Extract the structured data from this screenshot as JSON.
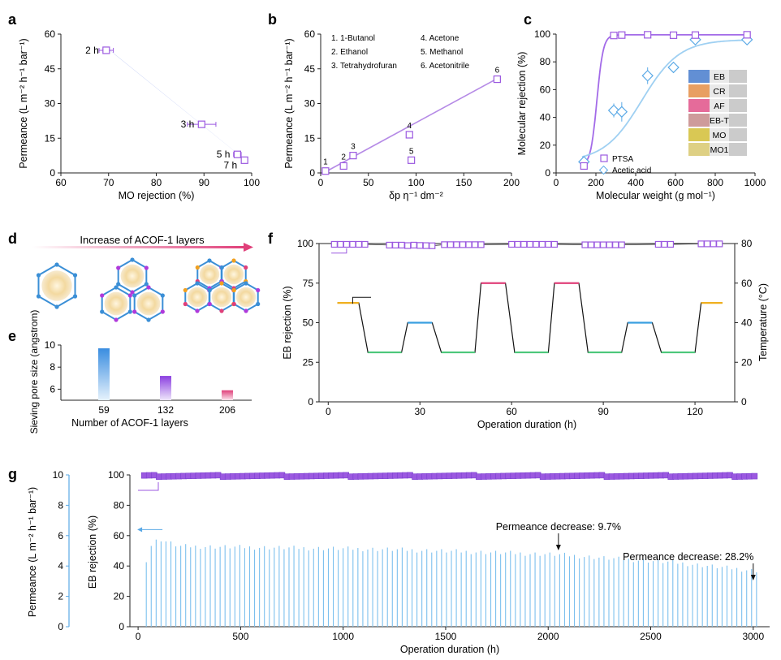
{
  "panels": {
    "a": {
      "letter": "a"
    },
    "b": {
      "letter": "b"
    },
    "c": {
      "letter": "c"
    },
    "d": {
      "letter": "d",
      "banner": "Increase of ACOF-1 layers"
    },
    "e": {
      "letter": "e"
    },
    "f": {
      "letter": "f"
    },
    "g": {
      "letter": "g"
    }
  },
  "colors": {
    "purple": "#9b59e0",
    "purple_light": "#c9b8f0",
    "blue": "#5aa9e6",
    "pink": "#e0407a",
    "grey": "#444444"
  },
  "chart_data": [
    {
      "id": "a",
      "type": "scatter",
      "xlabel": "MO rejection (%)",
      "ylabel": "Permeance (L m⁻² h⁻¹ bar⁻¹)",
      "xlim": [
        60,
        100
      ],
      "ylim": [
        0,
        60
      ],
      "xticks": [
        60,
        70,
        80,
        90,
        100
      ],
      "yticks": [
        0,
        15,
        30,
        45,
        60
      ],
      "points": [
        {
          "x": 69.5,
          "y": 53,
          "label": "2 h",
          "xerr": 1.5
        },
        {
          "x": 89.5,
          "y": 21,
          "label": "3 h",
          "xerr": 3
        },
        {
          "x": 97,
          "y": 8,
          "label": "5 h",
          "xerr": 0.8
        },
        {
          "x": 98.5,
          "y": 5.5,
          "label": "7 h",
          "xerr": 0.5
        }
      ]
    },
    {
      "id": "b",
      "type": "scatter",
      "xlabel": "δp η⁻¹ dm⁻²",
      "ylabel": "Permeance (L m⁻² h⁻¹ bar⁻¹)",
      "xlim": [
        0,
        200
      ],
      "ylim": [
        0,
        60
      ],
      "xticks": [
        0,
        50,
        100,
        150,
        200
      ],
      "yticks": [
        0,
        15,
        30,
        45,
        60
      ],
      "legend": [
        "1. 1-Butanol",
        "2. Ethanol",
        "3. Tetrahydrofuran",
        "4. Acetone",
        "5. Methanol",
        "6. Acetonitrile"
      ],
      "points": [
        {
          "x": 5,
          "y": 0.8,
          "label": "1"
        },
        {
          "x": 24,
          "y": 3,
          "label": "2"
        },
        {
          "x": 34,
          "y": 7.5,
          "label": "3"
        },
        {
          "x": 93,
          "y": 16.5,
          "label": "4"
        },
        {
          "x": 95,
          "y": 5.5,
          "label": "5"
        },
        {
          "x": 185,
          "y": 40.5,
          "label": "6"
        }
      ],
      "fit": [
        [
          3,
          0
        ],
        [
          186,
          41
        ]
      ]
    },
    {
      "id": "c",
      "type": "line",
      "xlabel": "Molecular weight (g mol⁻¹)",
      "ylabel": "Molecular rejection (%)",
      "xlim": [
        0,
        1000
      ],
      "ylim": [
        0,
        100
      ],
      "xticks": [
        0,
        200,
        400,
        600,
        800,
        1000
      ],
      "yticks": [
        0,
        20,
        40,
        60,
        80,
        100
      ],
      "series": [
        {
          "name": "PTSA",
          "marker": "square",
          "points": [
            [
              140,
              5
            ],
            [
              290,
              99
            ],
            [
              330,
              99.3
            ],
            [
              460,
              99.5
            ],
            [
              590,
              99.2
            ],
            [
              700,
              99.3
            ],
            [
              960,
              99.5
            ]
          ]
        },
        {
          "name": "Acetic acid",
          "marker": "diamond",
          "points": [
            [
              140,
              8
            ],
            [
              290,
              45
            ],
            [
              330,
              44
            ],
            [
              460,
              70
            ],
            [
              590,
              76
            ],
            [
              700,
              96
            ],
            [
              960,
              96
            ]
          ]
        }
      ],
      "inset_labels": [
        "EB",
        "CR",
        "AF",
        "EB-T",
        "MO",
        "MO1"
      ],
      "inset_colors": [
        "#4a7fd0",
        "#e8924a",
        "#e4558c",
        "#c98d8d",
        "#d6c23a",
        "#dccb72"
      ]
    },
    {
      "id": "e",
      "type": "bar",
      "xlabel": "Number of ACOF-1 layers",
      "ylabel": "Sieving pore size (angstrom)",
      "categories": [
        "59",
        "132",
        "206"
      ],
      "values": [
        9.7,
        7.2,
        5.9
      ],
      "ylim": [
        5,
        10
      ],
      "yticks": [
        6,
        8,
        10
      ]
    },
    {
      "id": "f",
      "type": "line",
      "xlabel": "Operation duration (h)",
      "ylabel": "EB rejection (%)",
      "y2label": "Temperature (°C)",
      "xlim": [
        -3,
        133
      ],
      "ylim": [
        0,
        100
      ],
      "y2lim": [
        0,
        80
      ],
      "xticks": [
        0,
        30,
        60,
        90,
        120
      ],
      "yticks": [
        0,
        25,
        50,
        75,
        100
      ],
      "y2ticks": [
        0,
        20,
        40,
        60,
        80
      ],
      "rejection": [
        [
          2,
          99.5
        ],
        [
          4,
          99.5
        ],
        [
          6,
          99.5
        ],
        [
          8,
          99.5
        ],
        [
          10,
          99.5
        ],
        [
          12,
          99.5
        ],
        [
          20,
          99
        ],
        [
          22,
          99
        ],
        [
          24,
          99
        ],
        [
          26,
          98.7
        ],
        [
          28,
          99
        ],
        [
          30,
          98.8
        ],
        [
          32,
          98.7
        ],
        [
          34,
          98.6
        ],
        [
          38,
          99.3
        ],
        [
          40,
          99.3
        ],
        [
          42,
          99.3
        ],
        [
          44,
          99.3
        ],
        [
          46,
          99.3
        ],
        [
          48,
          99.3
        ],
        [
          50,
          99.3
        ],
        [
          60,
          99.5
        ],
        [
          62,
          99.5
        ],
        [
          64,
          99.5
        ],
        [
          66,
          99.5
        ],
        [
          68,
          99.5
        ],
        [
          70,
          99.5
        ],
        [
          72,
          99.5
        ],
        [
          74,
          99.5
        ],
        [
          84,
          99.2
        ],
        [
          86,
          99.2
        ],
        [
          88,
          99.2
        ],
        [
          90,
          99.2
        ],
        [
          92,
          99.2
        ],
        [
          94,
          99.2
        ],
        [
          96,
          99.2
        ],
        [
          108,
          99.5
        ],
        [
          110,
          99.5
        ],
        [
          112,
          99.5
        ],
        [
          122,
          99.8
        ],
        [
          124,
          99.8
        ],
        [
          126,
          99.8
        ],
        [
          128,
          99.8
        ]
      ],
      "temperature_segments": [
        {
          "x0": 3,
          "x1": 10,
          "t": 50,
          "color": "#f0b020"
        },
        {
          "x0": 13,
          "x1": 24,
          "t": 25,
          "color": "#4cc77a"
        },
        {
          "x0": 26,
          "x1": 34,
          "t": 40,
          "color": "#3a9fe0"
        },
        {
          "x0": 37,
          "x1": 48,
          "t": 25,
          "color": "#4cc77a"
        },
        {
          "x0": 50,
          "x1": 58,
          "t": 60,
          "color": "#e0407a"
        },
        {
          "x0": 61,
          "x1": 72,
          "t": 25,
          "color": "#4cc77a"
        },
        {
          "x0": 74,
          "x1": 82,
          "t": 60,
          "color": "#e0407a"
        },
        {
          "x0": 85,
          "x1": 96,
          "t": 25,
          "color": "#4cc77a"
        },
        {
          "x0": 98,
          "x1": 106,
          "t": 40,
          "color": "#3a9fe0"
        },
        {
          "x0": 109,
          "x1": 120,
          "t": 25,
          "color": "#4cc77a"
        },
        {
          "x0": 122,
          "x1": 129,
          "t": 50,
          "color": "#f0b020"
        }
      ]
    },
    {
      "id": "g",
      "type": "bar",
      "xlabel": "Operation duration (h)",
      "ylabel": "EB rejection (%)",
      "y2label": "Permeance (L m⁻² h⁻¹ bar⁻¹)",
      "xlim": [
        -40,
        3080
      ],
      "ylim": [
        0,
        100
      ],
      "y2lim": [
        0,
        10
      ],
      "xticks": [
        0,
        500,
        1000,
        1500,
        2000,
        2500,
        3000
      ],
      "yticks": [
        0,
        20,
        40,
        60,
        80,
        100
      ],
      "y2ticks": [
        0,
        2,
        4,
        6,
        8,
        10
      ],
      "rejection_level": 99.8,
      "permeance_profile": [
        [
          40,
          4.4
        ],
        [
          60,
          5.3
        ],
        [
          100,
          5.8
        ],
        [
          200,
          5.3
        ],
        [
          700,
          5.2
        ],
        [
          1200,
          5.1
        ],
        [
          1700,
          4.9
        ],
        [
          2050,
          4.75
        ],
        [
          2300,
          4.5
        ],
        [
          2600,
          4.25
        ],
        [
          3000,
          3.7
        ]
      ],
      "annotations": [
        {
          "text": "Permeance decrease: 9.7%",
          "x": 2050
        },
        {
          "text": "Permeance decrease: 28.2%",
          "x": 3000
        }
      ]
    }
  ]
}
